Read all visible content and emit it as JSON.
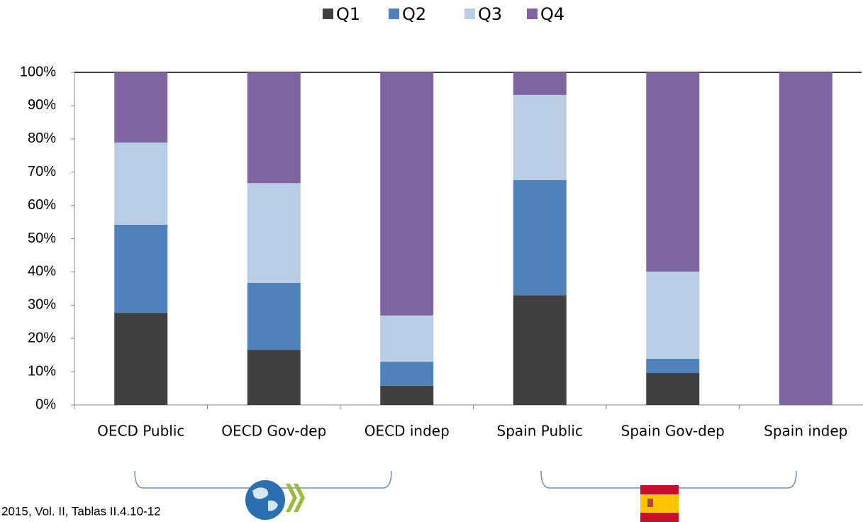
{
  "chart_data": {
    "type": "stacked_bar",
    "categories": [
      "OECD Public",
      "OECD Gov-dep",
      "OECD indep",
      "Spain Public",
      "Spain Gov-dep",
      "Spain indep"
    ],
    "series": [
      {
        "name": "Q1",
        "color": "#404040",
        "values": [
          27.7,
          16.6,
          5.8,
          33.0,
          9.6,
          0
        ]
      },
      {
        "name": "Q2",
        "color": "#4f81bd",
        "values": [
          26.5,
          20.1,
          7.2,
          34.6,
          4.3,
          0
        ]
      },
      {
        "name": "Q3",
        "color": "#b9cde5",
        "values": [
          24.7,
          30.0,
          13.9,
          25.6,
          26.2,
          0
        ]
      },
      {
        "name": "Q4",
        "color": "#8064a2",
        "values": [
          21.1,
          33.3,
          73.1,
          6.8,
          59.9,
          100
        ]
      }
    ],
    "ylim": [
      0,
      100
    ],
    "yticks": [
      {
        "value": 0,
        "label": "0%"
      },
      {
        "value": 10,
        "label": "10%"
      },
      {
        "value": 20,
        "label": "20%"
      },
      {
        "value": 30,
        "label": "30%"
      },
      {
        "value": 40,
        "label": "40%"
      },
      {
        "value": 50,
        "label": "50%"
      },
      {
        "value": 60,
        "label": "60%"
      },
      {
        "value": 70,
        "label": "70%"
      },
      {
        "value": 80,
        "label": "80%"
      },
      {
        "value": 90,
        "label": "90%"
      },
      {
        "value": 100,
        "label": "100%"
      }
    ],
    "legend": "top",
    "note": "2015, Vol. II, Tablas II.4.10-12"
  }
}
